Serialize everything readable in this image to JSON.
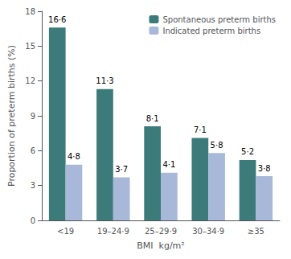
{
  "chart_data": {
    "type": "bar",
    "categories": [
      "<19",
      "19–24·9",
      "25–29·9",
      "30–34·9",
      "≥35"
    ],
    "series": [
      {
        "name": "Spontaneous preterm births",
        "color": "#3d7a7a",
        "values": [
          16.6,
          11.3,
          8.1,
          7.1,
          5.2
        ],
        "value_labels": [
          "16·6",
          "11·3",
          "8·1",
          "7·1",
          "5·2"
        ]
      },
      {
        "name": "Indicated preterm births",
        "color": "#a8b8d8",
        "values": [
          4.8,
          3.7,
          4.1,
          5.8,
          3.8
        ],
        "value_labels": [
          "4·8",
          "3·7",
          "4·1",
          "5·8",
          "3·8"
        ]
      }
    ],
    "xlabel": "BMI  kg/m²",
    "ylabel": "Proportion of preterm births (%)",
    "ylim": [
      0,
      18
    ],
    "yticks": [
      0,
      3,
      6,
      9,
      12,
      15,
      18
    ],
    "grid": false,
    "legend": "upper right",
    "data_labels": true
  }
}
